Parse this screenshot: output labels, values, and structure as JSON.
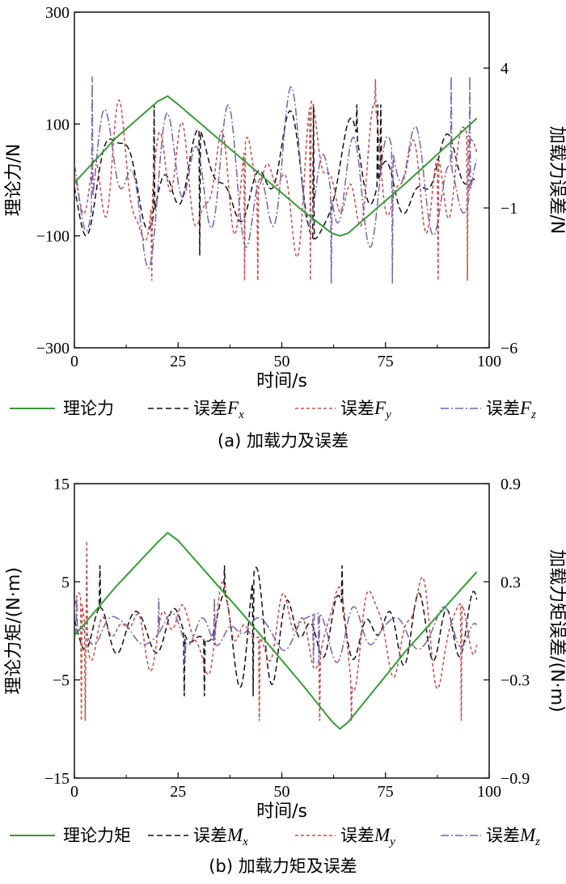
{
  "colors": {
    "theory": "#3a9a3a",
    "error_x": "#111111",
    "error_y": "#c0504d",
    "error_z": "#7a63a8"
  },
  "chart_data": [
    {
      "type": "line",
      "title": "(a) 加载力及误差",
      "xlabel": "时间/s",
      "ylabel": "理论力/N",
      "y2label": "加载力误差/N",
      "xlim": [
        0,
        100
      ],
      "ylim": [
        -300,
        300
      ],
      "y2lim": [
        -6,
        6
      ],
      "xticks": [
        "0",
        "25",
        "50",
        "75",
        "100"
      ],
      "yticks": [
        "300",
        "100",
        "−100",
        "−300"
      ],
      "y2ticks": [
        "4",
        "−1",
        "−6"
      ],
      "ytick_values": [
        300,
        100,
        -100,
        -300
      ],
      "y2tick_values": [
        4,
        -1,
        -6
      ],
      "theory": {
        "name": "理论力",
        "x": [
          0,
          10,
          20,
          22.5,
          25,
          40,
          55,
          62,
          64,
          66,
          80,
          97
        ],
        "y": [
          -5,
          75,
          140,
          150,
          135,
          40,
          -55,
          -95,
          -100,
          -95,
          -5,
          110
        ]
      },
      "errors": [
        {
          "name": "误差",
          "sub": "x",
          "amp": 2.0,
          "peak": 2.7,
          "seed": 11,
          "freq": 1.0
        },
        {
          "name": "误差",
          "sub": "y",
          "amp": 2.6,
          "peak": 3.6,
          "seed": 23,
          "freq": 1.15
        },
        {
          "name": "误差",
          "sub": "z",
          "amp": 2.6,
          "peak": 3.7,
          "seed": 37,
          "freq": 0.9
        }
      ],
      "legend_theory": "理论力"
    },
    {
      "type": "line",
      "title": "(b) 加载力矩及误差",
      "xlabel": "时间/s",
      "ylabel": "理论力矩/(N·m)",
      "y2label": "加载力矩误差/(N·m)",
      "xlim": [
        0,
        100
      ],
      "ylim": [
        -15,
        15
      ],
      "y2lim": [
        -0.9,
        0.9
      ],
      "xticks": [
        "0",
        "25",
        "50",
        "75",
        "100"
      ],
      "yticks": [
        "15",
        "5",
        "−5",
        "−15"
      ],
      "y2ticks": [
        "0.9",
        "0.3",
        "−0.3",
        "−0.9"
      ],
      "ytick_values": [
        15,
        5,
        -5,
        -15
      ],
      "y2tick_values": [
        0.9,
        0.3,
        -0.3,
        -0.9
      ],
      "theory": {
        "name": "理论力矩",
        "x": [
          0,
          10,
          20,
          22.5,
          25,
          40,
          55,
          62,
          64,
          66,
          80,
          97
        ],
        "y": [
          -0.5,
          4.5,
          9.0,
          10.0,
          9.2,
          2.0,
          -5.5,
          -9.2,
          -10.0,
          -9.3,
          -2.0,
          6.0
        ]
      },
      "errors": [
        {
          "name": "误差",
          "sub": "x",
          "amp": 0.22,
          "peak": 0.4,
          "seed": 51,
          "freq": 1.3
        },
        {
          "name": "误差",
          "sub": "y",
          "amp": 0.27,
          "peak": 0.55,
          "seed": 67,
          "freq": 1.4
        },
        {
          "name": "误差",
          "sub": "z",
          "amp": 0.12,
          "peak": 0.2,
          "seed": 79,
          "freq": 1.1
        }
      ],
      "legend_theory": "理论力矩"
    }
  ],
  "legend_symbol_a": "F",
  "legend_symbol_b": "M"
}
